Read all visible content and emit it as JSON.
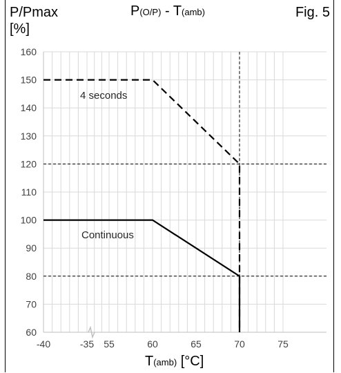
{
  "figure": {
    "ylabel": "P/Pmax",
    "yunit": "[%]",
    "title_main": "P",
    "title_sub1": "(O/P)",
    "title_mid": " - T",
    "title_sub2": "(amb)",
    "fig_label": "Fig. 5",
    "xlabel_main": "T",
    "xlabel_sub": "(amb)",
    "xlabel_unit": " [°C]"
  },
  "chart_data": {
    "type": "line",
    "title": "P(O/P) - T(amb)",
    "xlabel": "T(amb) [°C]",
    "ylabel": "P/Pmax [%]",
    "x_ticks": [
      "-40",
      "-35",
      "55",
      "60",
      "65",
      "70",
      "75"
    ],
    "x_tick_values": [
      -40,
      -35,
      55,
      60,
      65,
      70,
      75
    ],
    "axis_break": "between -35 and 55",
    "y_ticks": [
      60,
      70,
      80,
      90,
      100,
      110,
      120,
      130,
      140,
      150,
      160
    ],
    "ylim": [
      60,
      160
    ],
    "xlim": [
      -40,
      75
    ],
    "grid": true,
    "series": [
      {
        "name": "4 seconds",
        "style": "dashed",
        "x": [
          -40,
          60,
          70,
          70
        ],
        "y": [
          150,
          150,
          120,
          60
        ]
      },
      {
        "name": "Continuous",
        "style": "solid",
        "x": [
          -40,
          60,
          70,
          70
        ],
        "y": [
          100,
          100,
          80,
          60
        ]
      }
    ],
    "reference_lines": [
      {
        "orientation": "horizontal",
        "value": 120,
        "style": "dashed"
      },
      {
        "orientation": "horizontal",
        "value": 80,
        "style": "dashed"
      },
      {
        "orientation": "vertical",
        "value": 70,
        "style": "dashed"
      }
    ],
    "colors": {
      "lines": "#000000",
      "grid": "#d9d9d9",
      "axes": "#bfbfbf",
      "tick_text": "#404040"
    }
  }
}
